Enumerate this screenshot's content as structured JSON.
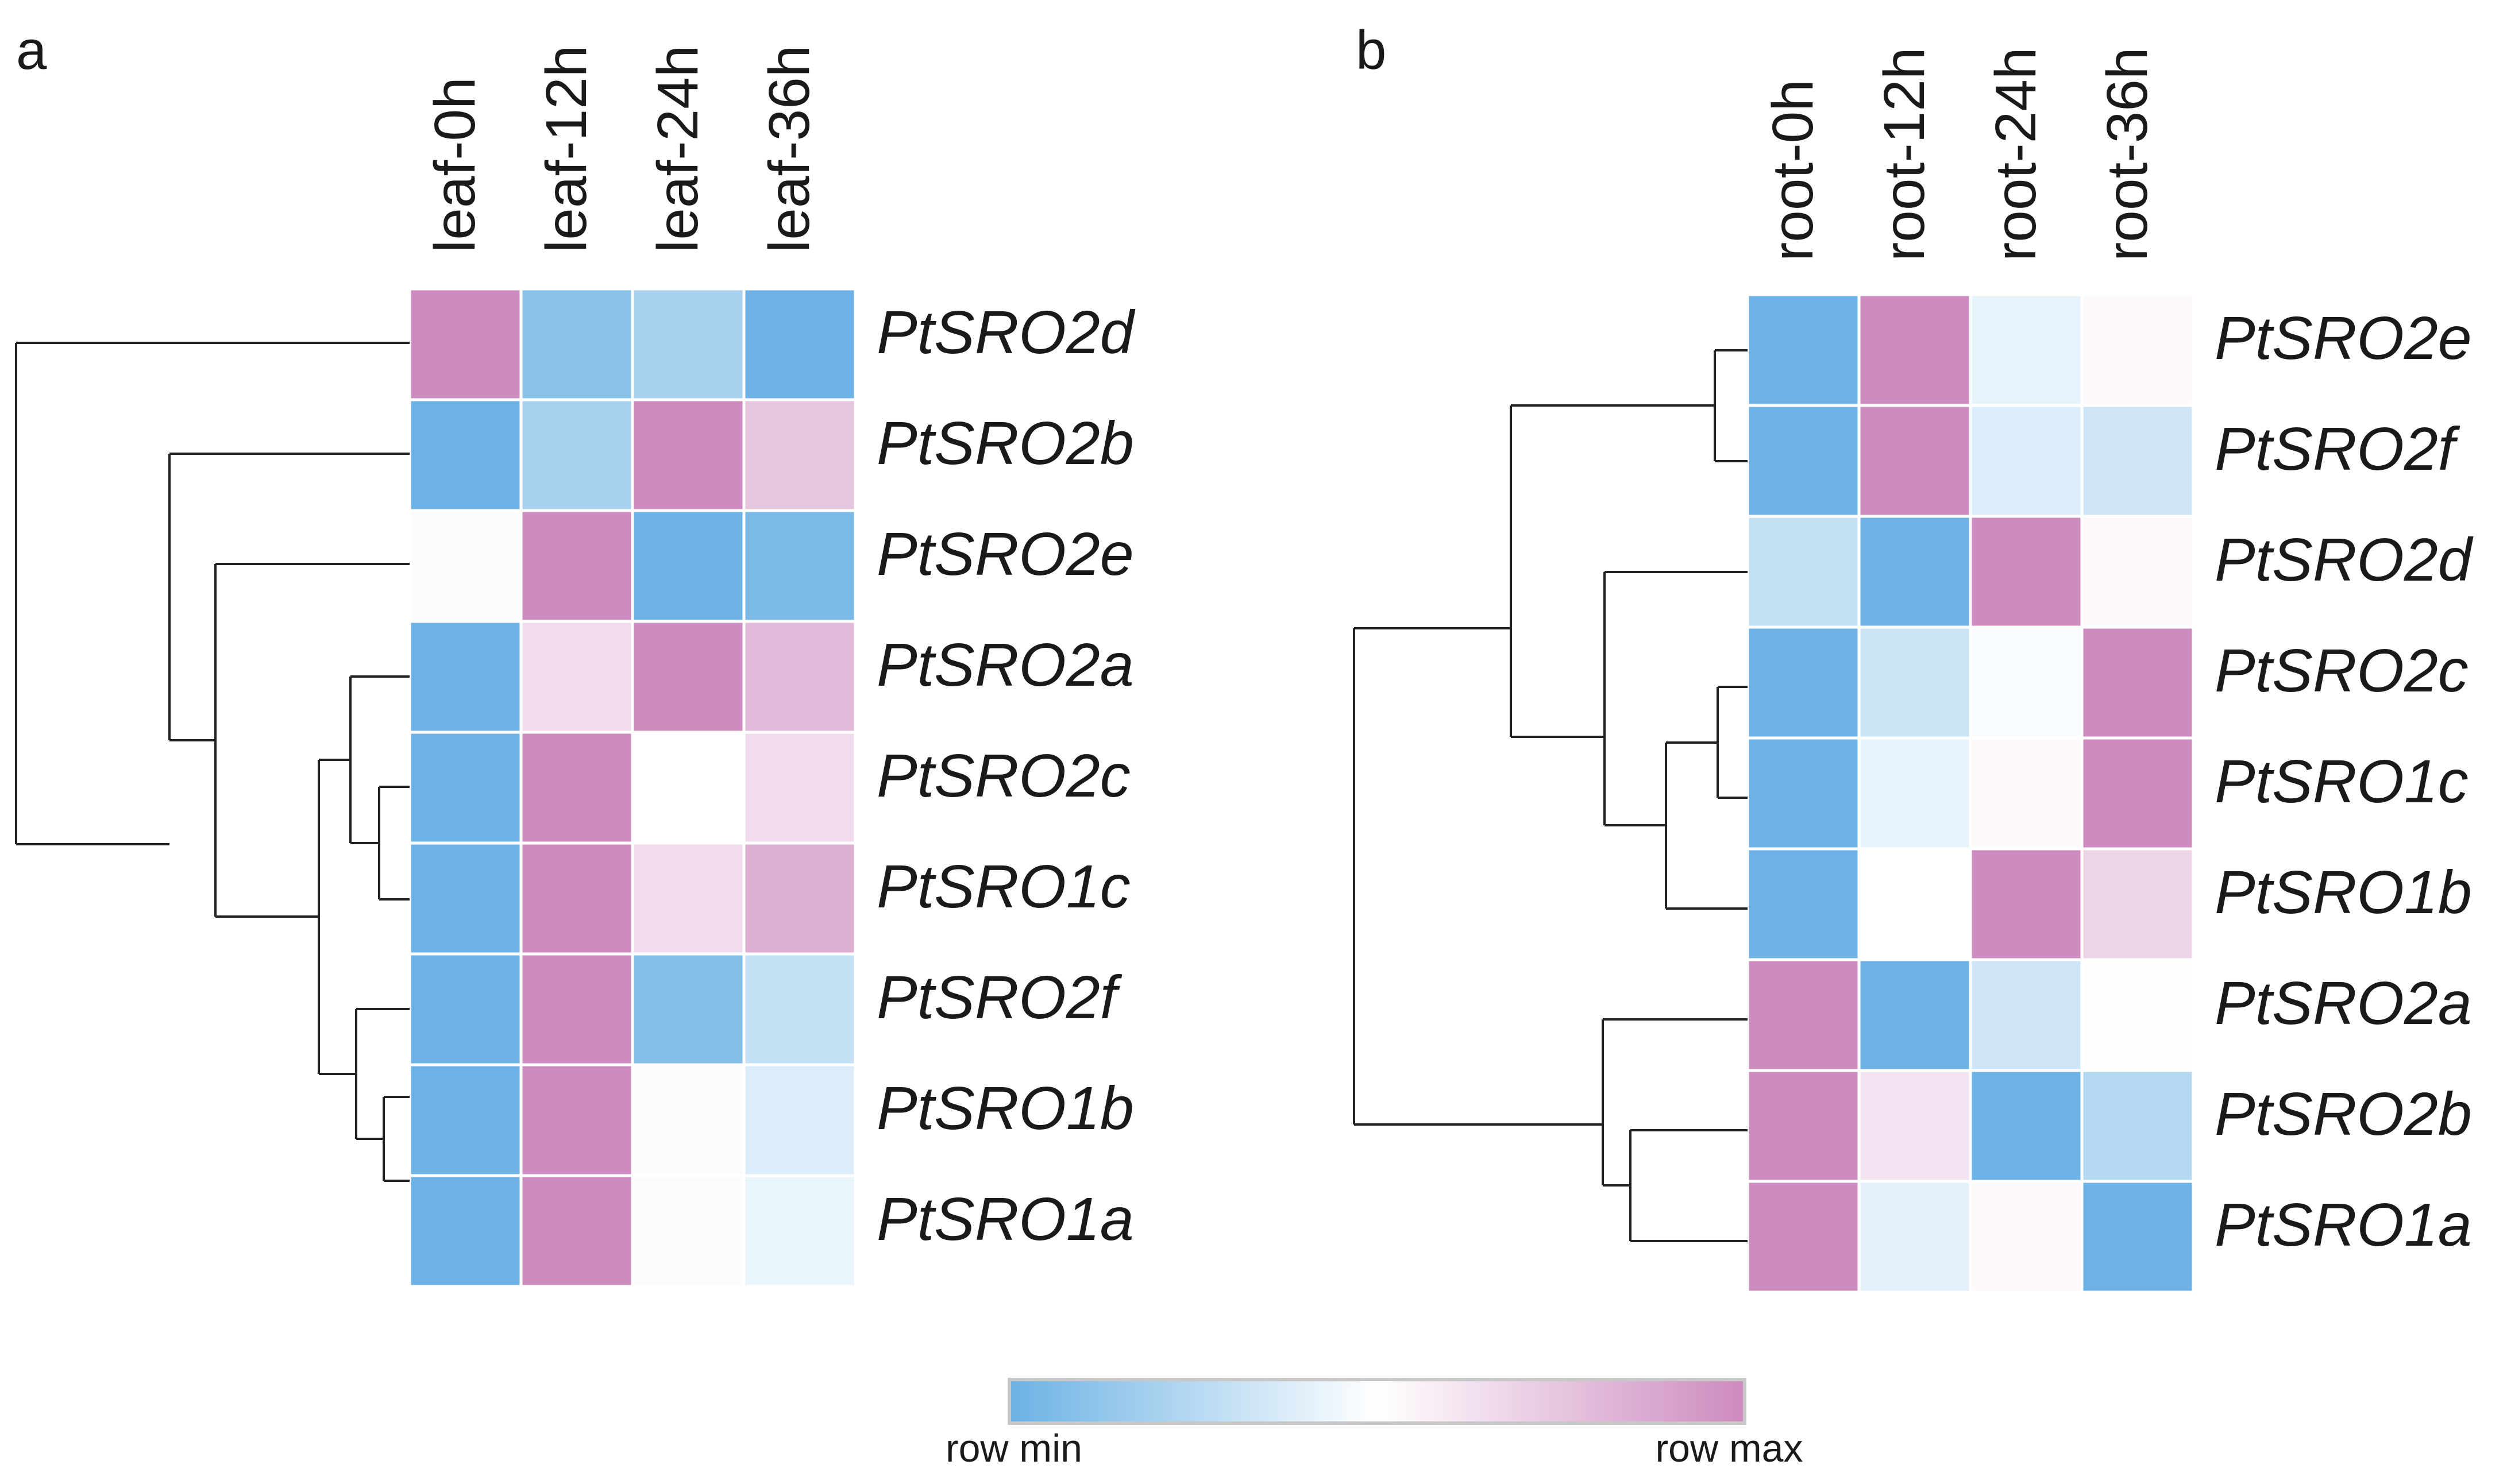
{
  "chart_data": [
    {
      "type": "heatmap",
      "panel": "a",
      "columns": [
        "leaf-0h",
        "leaf-12h",
        "leaf-24h",
        "leaf-36h"
      ],
      "rows": [
        "PtSRO2d",
        "PtSRO2b",
        "PtSRO2e",
        "PtSRO2a",
        "PtSRO2c",
        "PtSRO1c",
        "PtSRO2f",
        "PtSRO1b",
        "PtSRO1a"
      ],
      "values": [
        [
          1.0,
          0.1,
          0.2,
          0.0
        ],
        [
          0.0,
          0.2,
          1.0,
          0.75
        ],
        [
          0.52,
          1.0,
          0.0,
          0.05
        ],
        [
          0.0,
          0.65,
          1.0,
          0.8
        ],
        [
          0.0,
          1.0,
          0.5,
          0.65
        ],
        [
          0.0,
          1.0,
          0.65,
          0.85
        ],
        [
          0.0,
          1.0,
          0.08,
          0.3
        ],
        [
          0.0,
          1.0,
          0.52,
          0.38
        ],
        [
          0.0,
          1.0,
          0.52,
          0.43
        ]
      ],
      "scale": "row-normalized (0 = row min, 1 = row max)",
      "dendrogram": "rows clustered"
    },
    {
      "type": "heatmap",
      "panel": "b",
      "columns": [
        "root-0h",
        "root-12h",
        "root-24h",
        "root-36h"
      ],
      "rows": [
        "PtSRO2e",
        "PtSRO2f",
        "PtSRO2d",
        "PtSRO2c",
        "PtSRO1c",
        "PtSRO1b",
        "PtSRO2a",
        "PtSRO2b",
        "PtSRO1a"
      ],
      "values": [
        [
          0.0,
          1.0,
          0.42,
          0.53
        ],
        [
          0.0,
          1.0,
          0.38,
          0.33
        ],
        [
          0.3,
          0.0,
          1.0,
          0.53
        ],
        [
          0.0,
          0.32,
          0.48,
          1.0
        ],
        [
          0.0,
          0.42,
          0.53,
          1.0
        ],
        [
          0.0,
          0.5,
          1.0,
          0.68
        ],
        [
          1.0,
          0.0,
          0.33,
          0.49
        ],
        [
          1.0,
          0.62,
          0.0,
          0.25
        ],
        [
          1.0,
          0.4,
          0.53,
          0.0
        ]
      ],
      "scale": "row-normalized (0 = row min, 1 = row max)",
      "dendrogram": "rows clustered"
    }
  ],
  "legend": {
    "min_label": "row min",
    "max_label": "row max",
    "min_color": "#6cb2e4",
    "mid_color": "#ffffff",
    "max_color": "#cd8bbf"
  },
  "colors": {
    "low": "#6cb2e4",
    "mid": "#ffffff",
    "high": "#cd8bbf"
  }
}
